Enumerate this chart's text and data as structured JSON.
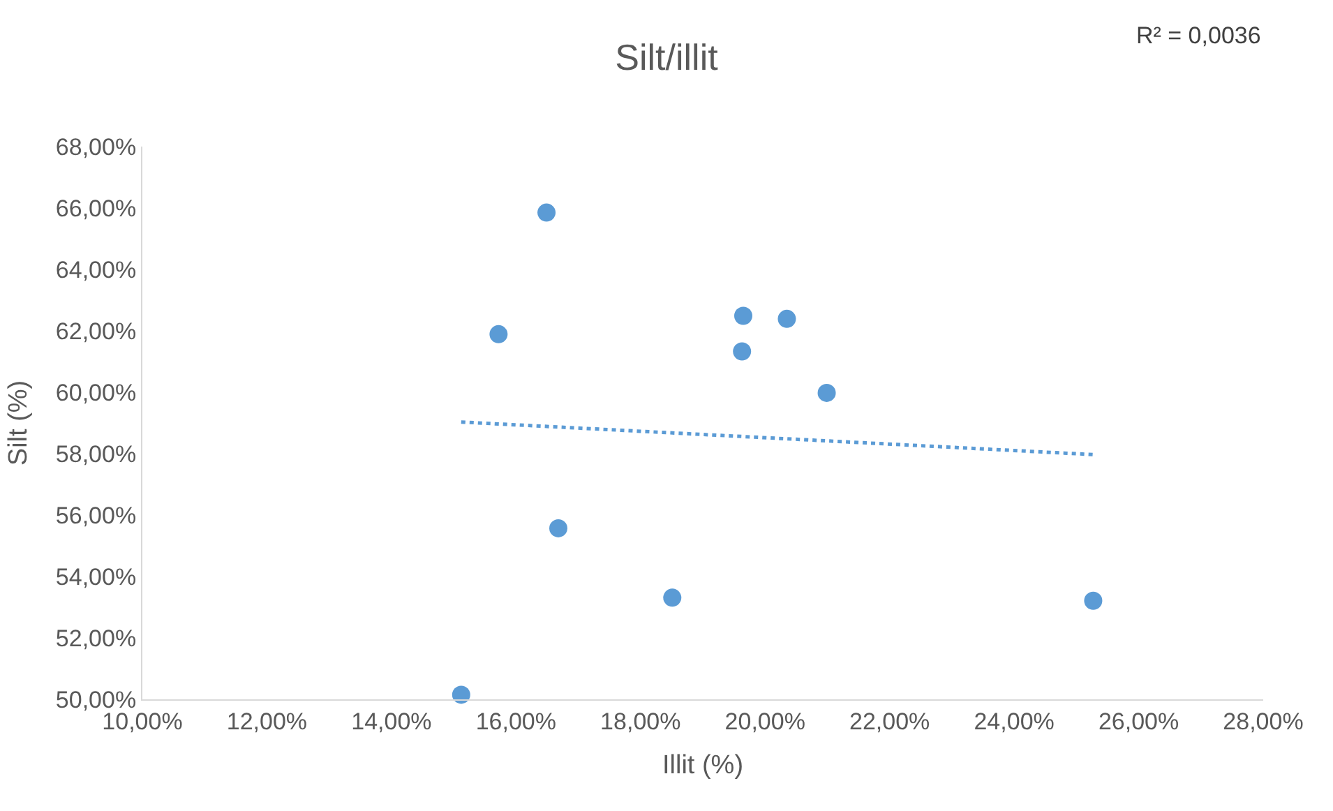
{
  "chart_data": {
    "type": "scatter",
    "title": "Silt/illit",
    "xlabel": "Illit (%)",
    "ylabel": "Silt (%)",
    "annotations": [
      "R² = 0,0036"
    ],
    "series": [
      {
        "color": "#5b9bd5",
        "marker": "circle",
        "x": [
          15.12,
          15.72,
          16.49,
          16.68,
          18.51,
          19.63,
          19.65,
          20.35,
          20.99,
          25.27
        ],
        "values": [
          50.15,
          61.89,
          65.85,
          55.57,
          53.31,
          61.33,
          62.49,
          62.39,
          59.98,
          53.21
        ]
      },
      {
        "type": "line",
        "color": "#5b9bd5",
        "marker": "none",
        "line_style": "dotted",
        "x": [
          15.12,
          25.27
        ],
        "values": [
          59.03,
          57.97
        ]
      }
    ],
    "xlim": [
      10,
      28
    ],
    "ylim": [
      50,
      68
    ],
    "xticks": [
      {
        "value": 10,
        "label": "10,00%"
      },
      {
        "value": 12,
        "label": "12,00%"
      },
      {
        "value": 14,
        "label": "14,00%"
      },
      {
        "value": 16,
        "label": "16,00%"
      },
      {
        "value": 18,
        "label": "18,00%"
      },
      {
        "value": 20,
        "label": "20,00%"
      },
      {
        "value": 22,
        "label": "22,00%"
      },
      {
        "value": 24,
        "label": "24,00%"
      },
      {
        "value": 26,
        "label": "26,00%"
      },
      {
        "value": 28,
        "label": "28,00%"
      }
    ],
    "yticks": [
      {
        "value": 50,
        "label": "50,00%"
      },
      {
        "value": 52,
        "label": "52,00%"
      },
      {
        "value": 54,
        "label": "54,00%"
      },
      {
        "value": 56,
        "label": "56,00%"
      },
      {
        "value": 58,
        "label": "58,00%"
      },
      {
        "value": 60,
        "label": "60,00%"
      },
      {
        "value": 62,
        "label": "62,00%"
      },
      {
        "value": 64,
        "label": "64,00%"
      },
      {
        "value": 66,
        "label": "66,00%"
      },
      {
        "value": 68,
        "label": "68,00%"
      }
    ],
    "grid": false
  }
}
